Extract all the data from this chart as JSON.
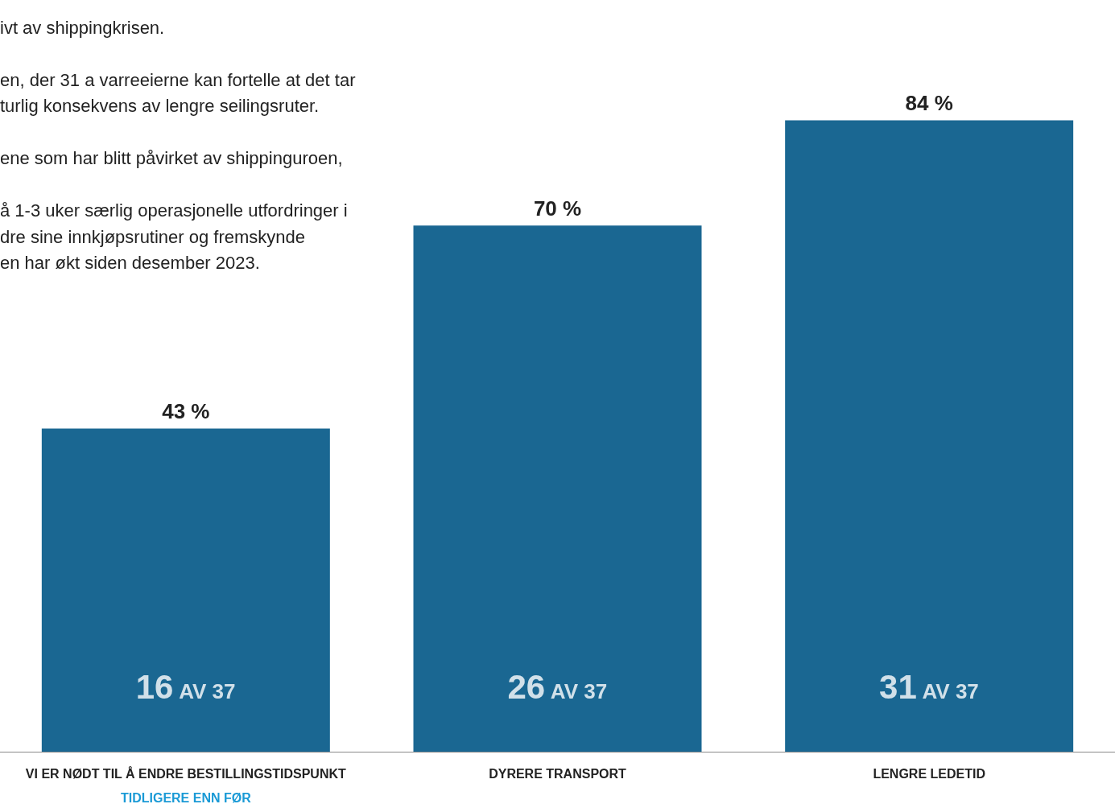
{
  "chart_data": {
    "type": "bar",
    "categories": [
      "VI ER NØDT TIL Å ENDRE BESTILLINGSTIDSPUNKT\nTIDLIGERE ENN FØR",
      "DYRERE TRANSPORT",
      "LENGRE LEDETID"
    ],
    "values": [
      43,
      70,
      84
    ],
    "color": "#1a6792",
    "value_labels": [
      "43 %",
      "70 %",
      "84 %"
    ],
    "annotations": [
      "ivt av shippingkrisen.",
      "en, der 31 a varreeierne kan fortelle at det tar\nturlig konsekvens av lengre seilingsruter.",
      "ene som har blitt påvirket av shippinguroen,",
      "å 1-3 uker særlig operasjonelle utfordringer i\ndre sine innkjøpsrutiner og fremskynde\nen har økt siden desember 2023.",
      "16 AV 37",
      "26 AV 37",
      "31 AV 37"
    ]
  }
}
